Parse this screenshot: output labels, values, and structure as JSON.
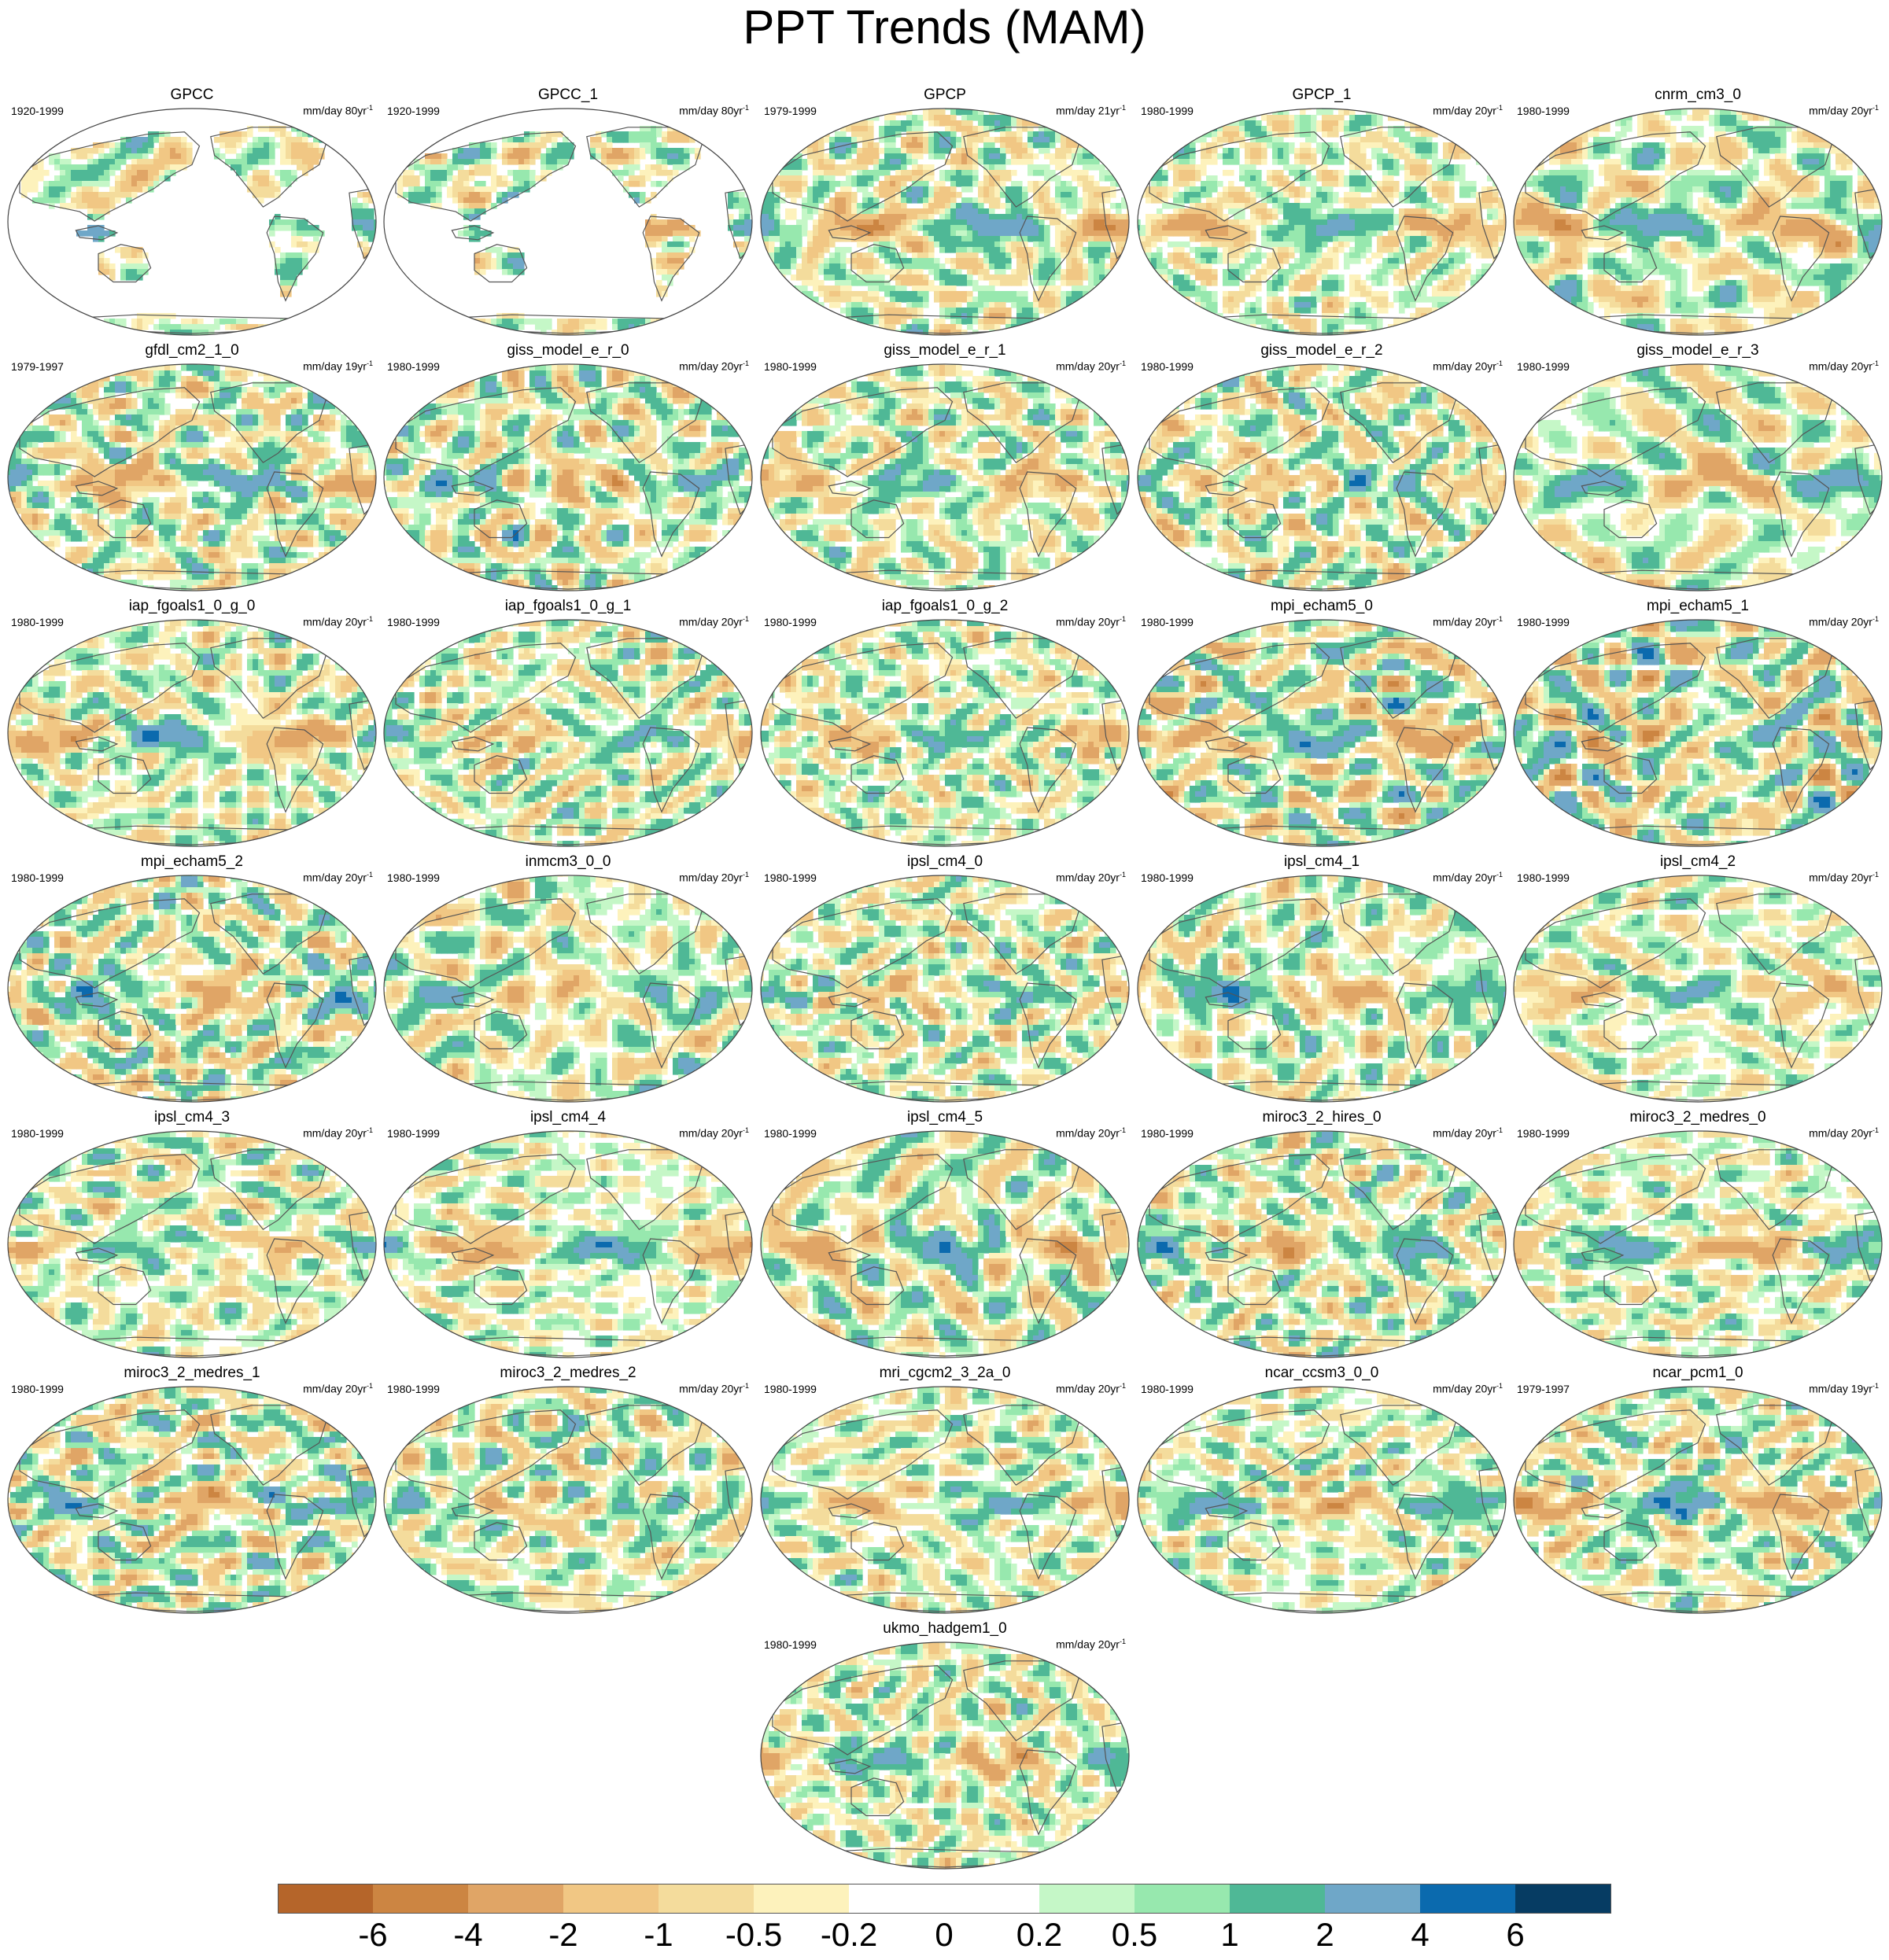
{
  "title": "PPT Trends (MAM)",
  "chart_data": {
    "type": "heatmap",
    "title": "PPT Trends (MAM)",
    "projection": "Robinson-like global map, Pacific-centered",
    "panels": [
      {
        "name": "GPCC",
        "period": "1920-1999",
        "units": "mm/day 80yr",
        "land_only": true
      },
      {
        "name": "GPCC_1",
        "period": "1920-1999",
        "units": "mm/day 80yr",
        "land_only": true
      },
      {
        "name": "GPCP",
        "period": "1979-1999",
        "units": "mm/day 21yr",
        "land_only": false
      },
      {
        "name": "GPCP_1",
        "period": "1980-1999",
        "units": "mm/day 20yr",
        "land_only": false
      },
      {
        "name": "cnrm_cm3_0",
        "period": "1980-1999",
        "units": "mm/day 20yr",
        "land_only": false
      },
      {
        "name": "gfdl_cm2_1_0",
        "period": "1979-1997",
        "units": "mm/day 19yr",
        "land_only": false
      },
      {
        "name": "giss_model_e_r_0",
        "period": "1980-1999",
        "units": "mm/day 20yr",
        "land_only": false
      },
      {
        "name": "giss_model_e_r_1",
        "period": "1980-1999",
        "units": "mm/day 20yr",
        "land_only": false
      },
      {
        "name": "giss_model_e_r_2",
        "period": "1980-1999",
        "units": "mm/day 20yr",
        "land_only": false
      },
      {
        "name": "giss_model_e_r_3",
        "period": "1980-1999",
        "units": "mm/day 20yr",
        "land_only": false
      },
      {
        "name": "iap_fgoals1_0_g_0",
        "period": "1980-1999",
        "units": "mm/day 20yr",
        "land_only": false
      },
      {
        "name": "iap_fgoals1_0_g_1",
        "period": "1980-1999",
        "units": "mm/day 20yr",
        "land_only": false
      },
      {
        "name": "iap_fgoals1_0_g_2",
        "period": "1980-1999",
        "units": "mm/day 20yr",
        "land_only": false
      },
      {
        "name": "mpi_echam5_0",
        "period": "1980-1999",
        "units": "mm/day 20yr",
        "land_only": false
      },
      {
        "name": "mpi_echam5_1",
        "period": "1980-1999",
        "units": "mm/day 20yr",
        "land_only": false
      },
      {
        "name": "mpi_echam5_2",
        "period": "1980-1999",
        "units": "mm/day 20yr",
        "land_only": false
      },
      {
        "name": "inmcm3_0_0",
        "period": "1980-1999",
        "units": "mm/day 20yr",
        "land_only": false
      },
      {
        "name": "ipsl_cm4_0",
        "period": "1980-1999",
        "units": "mm/day 20yr",
        "land_only": false
      },
      {
        "name": "ipsl_cm4_1",
        "period": "1980-1999",
        "units": "mm/day 20yr",
        "land_only": false
      },
      {
        "name": "ipsl_cm4_2",
        "period": "1980-1999",
        "units": "mm/day 20yr",
        "land_only": false
      },
      {
        "name": "ipsl_cm4_3",
        "period": "1980-1999",
        "units": "mm/day 20yr",
        "land_only": false
      },
      {
        "name": "ipsl_cm4_4",
        "period": "1980-1999",
        "units": "mm/day 20yr",
        "land_only": false
      },
      {
        "name": "ipsl_cm4_5",
        "period": "1980-1999",
        "units": "mm/day 20yr",
        "land_only": false
      },
      {
        "name": "miroc3_2_hires_0",
        "period": "1980-1999",
        "units": "mm/day 20yr",
        "land_only": false
      },
      {
        "name": "miroc3_2_medres_0",
        "period": "1980-1999",
        "units": "mm/day 20yr",
        "land_only": false
      },
      {
        "name": "miroc3_2_medres_1",
        "period": "1980-1999",
        "units": "mm/day 20yr",
        "land_only": false
      },
      {
        "name": "miroc3_2_medres_2",
        "period": "1980-1999",
        "units": "mm/day 20yr",
        "land_only": false
      },
      {
        "name": "mri_cgcm2_3_2a_0",
        "period": "1980-1999",
        "units": "mm/day 20yr",
        "land_only": false
      },
      {
        "name": "ncar_ccsm3_0_0",
        "period": "1980-1999",
        "units": "mm/day 20yr",
        "land_only": false
      },
      {
        "name": "ncar_pcm1_0",
        "period": "1979-1997",
        "units": "mm/day 19yr",
        "land_only": false
      },
      {
        "name": "ukmo_hadgem1_0",
        "period": "1980-1999",
        "units": "mm/day 20yr",
        "land_only": false
      }
    ],
    "units_superscript": "-1",
    "colorbar": {
      "labels": [
        "-6",
        "-4",
        "-2",
        "-1",
        "-0.5",
        "-0.2",
        "0",
        "0.2",
        "0.5",
        "1",
        "2",
        "4",
        "6"
      ],
      "colors": [
        "#b5652a",
        "#cc8542",
        "#e0a566",
        "#f1c784",
        "#f4dc9c",
        "#fdf2bc",
        "#ffffff",
        "#ffffff",
        "#c5f7c7",
        "#97e8ae",
        "#4fb896",
        "#6fa7c8",
        "#0b6aae",
        "#063c63"
      ]
    }
  }
}
